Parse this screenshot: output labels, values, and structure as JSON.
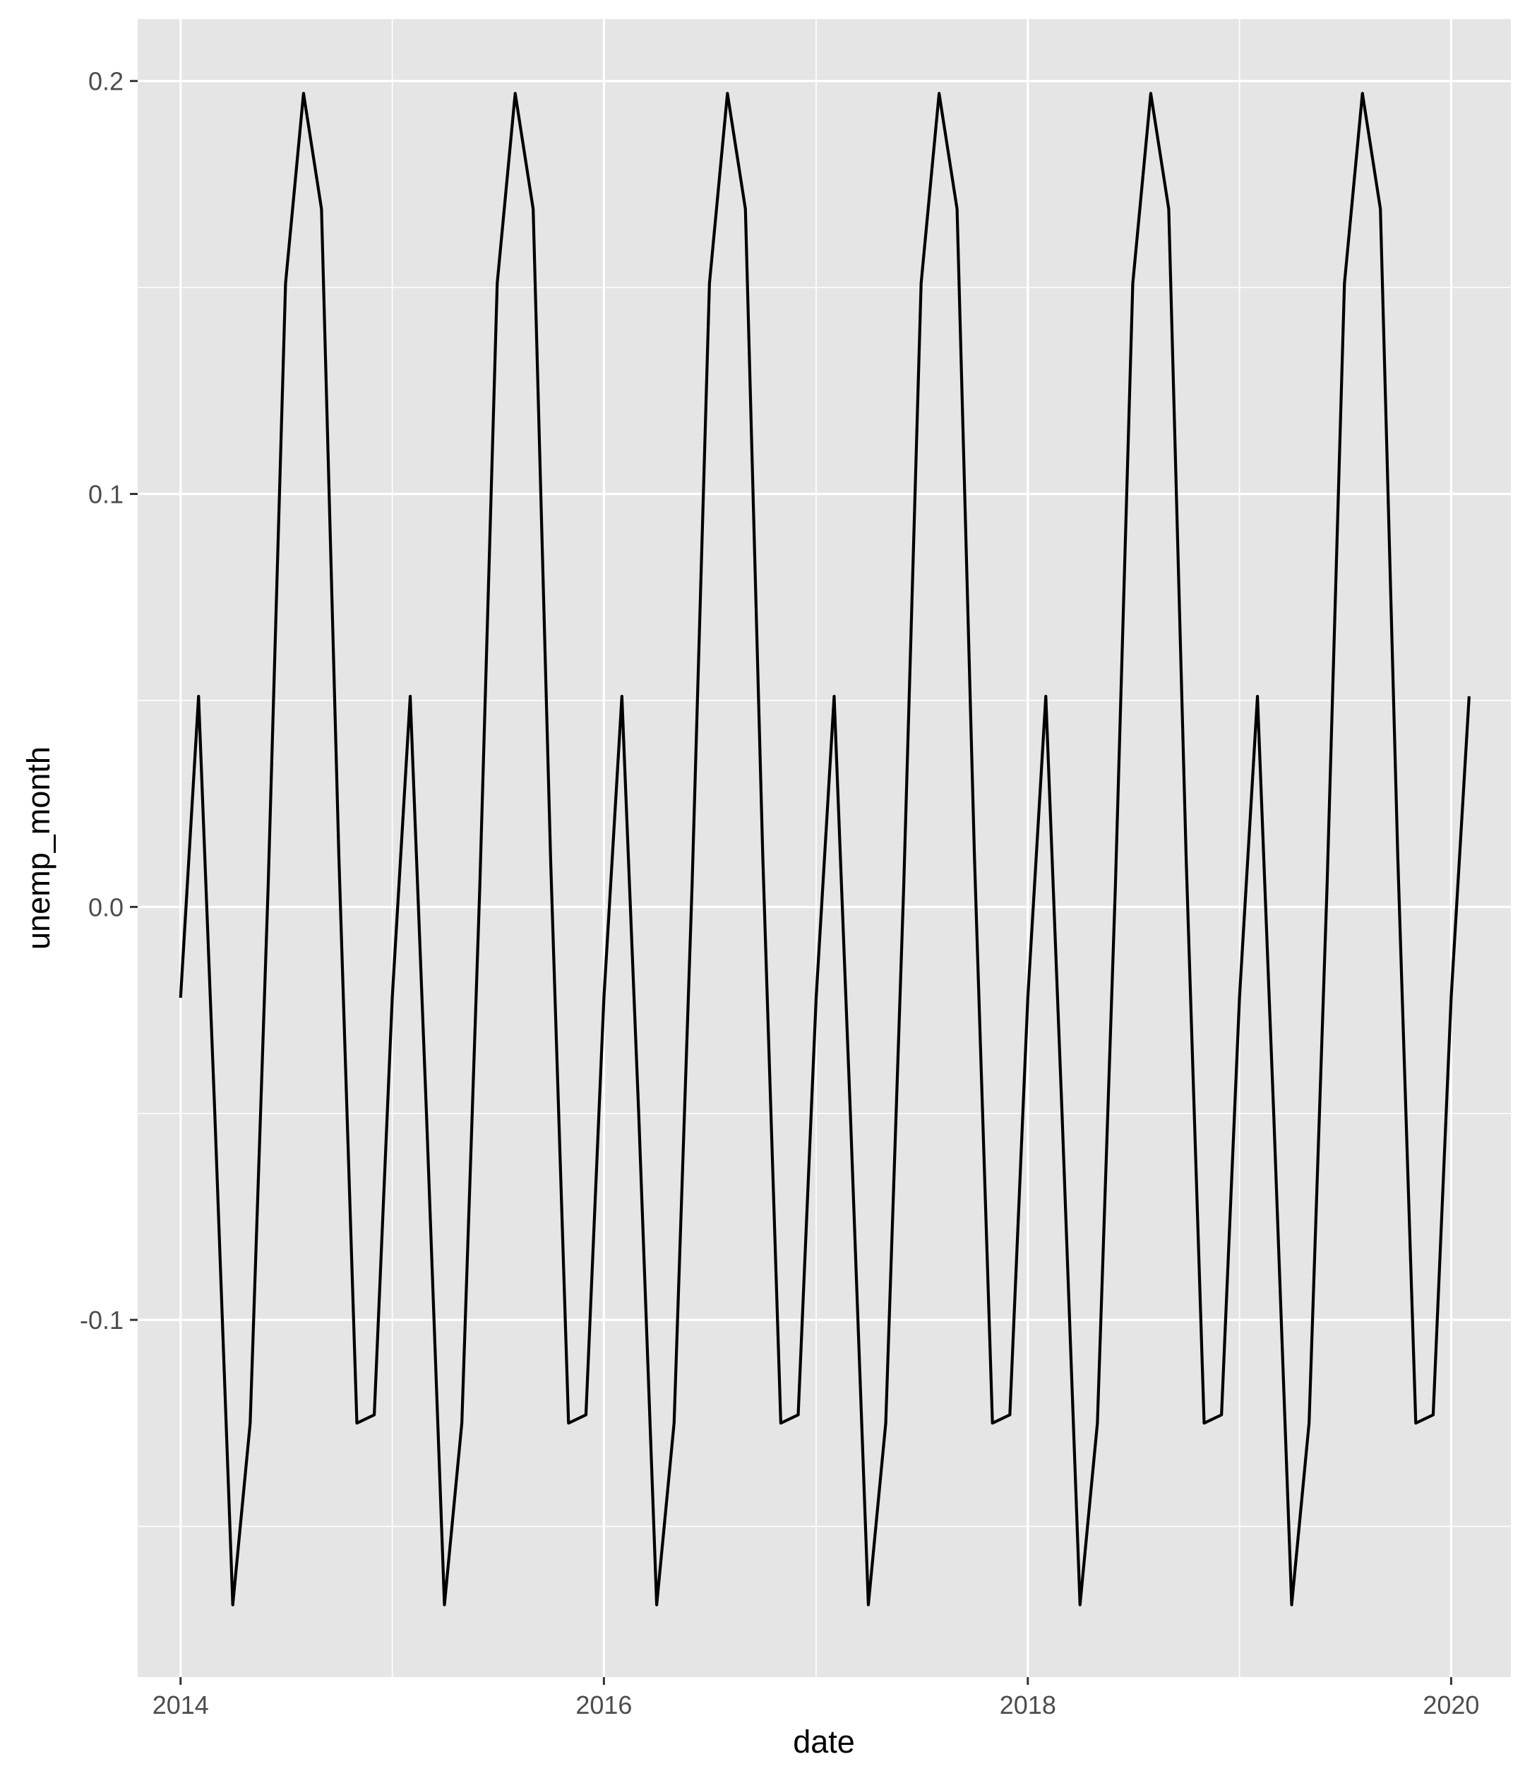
{
  "chart_data": {
    "type": "line",
    "xlabel": "date",
    "ylabel": "unemp_month",
    "x_is_date": true,
    "xlim": [
      "2013-10-19",
      "2020-04-13"
    ],
    "ylim": [
      -0.1865,
      0.215
    ],
    "x_ticks": [
      "2014-01-01",
      "2016-01-01",
      "2018-01-01",
      "2020-01-01"
    ],
    "x_tick_labels": [
      "2014",
      "2016",
      "2018",
      "2020"
    ],
    "x_minor_ticks": [
      "2015-01-01",
      "2017-01-01",
      "2019-01-01"
    ],
    "y_ticks": [
      -0.1,
      0.0,
      0.1,
      0.2
    ],
    "y_tick_labels": [
      "-0.1",
      "0.0",
      "0.1",
      "0.2"
    ],
    "y_minor_ticks": [
      -0.15,
      -0.05,
      0.05,
      0.15
    ],
    "grid": true,
    "legend": "none",
    "colors": {
      "panel": "#e5e5e5",
      "grid": "#ffffff",
      "line": "#000000",
      "text": "#4d4d4d",
      "title": "#000000"
    },
    "series": [
      {
        "color": "#000000",
        "x": [
          "2014-01-01",
          "2014-02-01",
          "2014-03-01",
          "2014-04-01",
          "2014-05-01",
          "2014-06-01",
          "2014-07-01",
          "2014-08-01",
          "2014-09-01",
          "2014-10-01",
          "2014-11-01",
          "2014-12-01",
          "2015-01-01",
          "2015-02-01",
          "2015-03-01",
          "2015-04-01",
          "2015-05-01",
          "2015-06-01",
          "2015-07-01",
          "2015-08-01",
          "2015-09-01",
          "2015-10-01",
          "2015-11-01",
          "2015-12-01",
          "2016-01-01",
          "2016-02-01",
          "2016-03-01",
          "2016-04-01",
          "2016-05-01",
          "2016-06-01",
          "2016-07-01",
          "2016-08-01",
          "2016-09-01",
          "2016-10-01",
          "2016-11-01",
          "2016-12-01",
          "2017-01-01",
          "2017-02-01",
          "2017-03-01",
          "2017-04-01",
          "2017-05-01",
          "2017-06-01",
          "2017-07-01",
          "2017-08-01",
          "2017-09-01",
          "2017-10-01",
          "2017-11-01",
          "2017-12-01",
          "2018-01-01",
          "2018-02-01",
          "2018-03-01",
          "2018-04-01",
          "2018-05-01",
          "2018-06-01",
          "2018-07-01",
          "2018-08-01",
          "2018-09-01",
          "2018-10-01",
          "2018-11-01",
          "2018-12-01",
          "2019-01-01",
          "2019-02-01",
          "2019-03-01",
          "2019-04-01",
          "2019-05-01",
          "2019-06-01",
          "2019-07-01",
          "2019-08-01",
          "2019-09-01",
          "2019-10-01",
          "2019-11-01",
          "2019-12-01",
          "2020-01-01",
          "2020-02-01"
        ],
        "y": [
          -0.022,
          0.051,
          -0.05,
          -0.169,
          -0.125,
          0.005,
          0.151,
          0.197,
          0.169,
          0.012,
          -0.125,
          -0.123,
          -0.022,
          0.051,
          -0.05,
          -0.169,
          -0.125,
          0.005,
          0.151,
          0.197,
          0.169,
          0.012,
          -0.125,
          -0.123,
          -0.022,
          0.051,
          -0.05,
          -0.169,
          -0.125,
          0.005,
          0.151,
          0.197,
          0.169,
          0.012,
          -0.125,
          -0.123,
          -0.022,
          0.051,
          -0.05,
          -0.169,
          -0.125,
          0.005,
          0.151,
          0.197,
          0.169,
          0.012,
          -0.125,
          -0.123,
          -0.022,
          0.051,
          -0.05,
          -0.169,
          -0.125,
          0.005,
          0.151,
          0.197,
          0.169,
          0.012,
          -0.125,
          -0.123,
          -0.022,
          0.051,
          -0.05,
          -0.169,
          -0.125,
          0.005,
          0.151,
          0.197,
          0.169,
          0.012,
          -0.125,
          -0.123,
          -0.022,
          0.051
        ]
      }
    ]
  }
}
